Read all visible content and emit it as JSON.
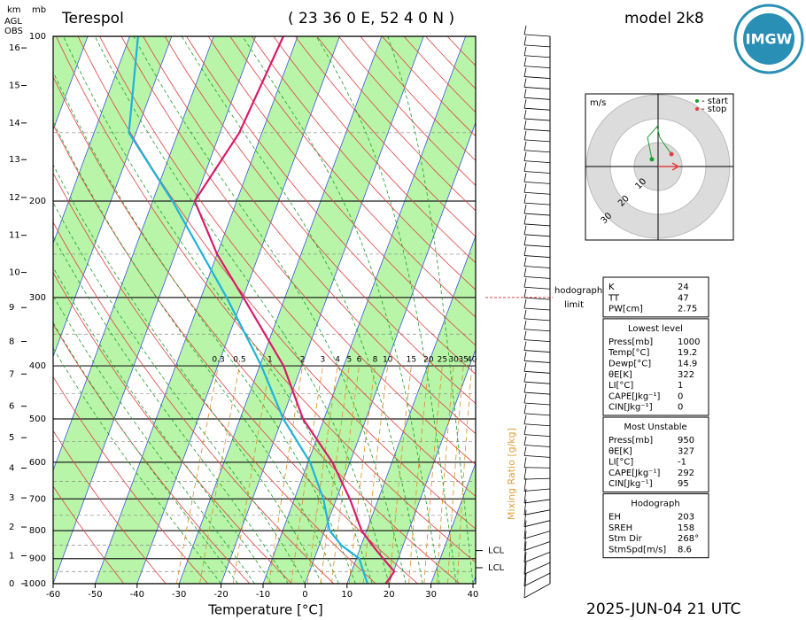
{
  "header": {
    "station": "Terespol",
    "coords": "( 23 36  0 E, 52  4  0 N )",
    "model": "model 2k8",
    "logo": "IMGW",
    "datetime": "2025-JUN-04   21 UTC"
  },
  "chart_data": {
    "type": "skewt",
    "xlabel": "Temperature [°C]",
    "xlim": [
      -60,
      40
    ],
    "xticks": [
      -60,
      -50,
      -40,
      -30,
      -20,
      -10,
      0,
      10,
      20,
      30,
      40
    ],
    "ylim": [
      100,
      1000
    ],
    "yticks": [
      100,
      200,
      300,
      400,
      500,
      600,
      700,
      800,
      900,
      1000
    ],
    "km_title": "km",
    "mb_title": "mb",
    "agl": "AGL",
    "obs": "OBS",
    "km_ticks": [
      0,
      1,
      2,
      3,
      4,
      5,
      6,
      7,
      8,
      9,
      10,
      11,
      12,
      13,
      14,
      15,
      16
    ],
    "mixing_ratio_label": "Mixing Ratio [g/kg]",
    "mixing_ratios": [
      0.3,
      0.5,
      1,
      2,
      3,
      4,
      5,
      6,
      8,
      10,
      15,
      20,
      25,
      30,
      35,
      40
    ],
    "series": [
      {
        "color": "#d81b6a",
        "pressure": [
          1000,
          950,
          900,
          850,
          800,
          700,
          600,
          500,
          400,
          300,
          250,
          200,
          150,
          100
        ],
        "values": [
          19.2,
          20.2,
          16.4,
          12.6,
          8.8,
          3.2,
          -4.2,
          -15,
          -24.3,
          -39.9,
          -50,
          -60,
          -55.4,
          -53.4
        ]
      },
      {
        "color": "#1fb3dc",
        "pressure": [
          1000,
          950,
          900,
          850,
          800,
          700,
          600,
          500,
          400,
          300,
          200,
          150,
          100
        ],
        "values": [
          14.9,
          12.8,
          10.7,
          5.2,
          1.2,
          -3.1,
          -9.5,
          -19.7,
          -29.6,
          -43.9,
          -65.3,
          -81.7,
          -88
        ]
      }
    ],
    "lcl": [
      {
        "label": "LCL",
        "pressure": 870
      },
      {
        "label": "LCL",
        "pressure": 935
      }
    ],
    "hodograph_limit": [
      "hodograph",
      "limit"
    ]
  },
  "hodograph": {
    "unit": "m/s",
    "start": "- start",
    "stop": "- stop",
    "rings": [
      10,
      20,
      30
    ],
    "u": [
      -2.6,
      -4.4,
      -0.4,
      0.7,
      2.6,
      5.6
    ],
    "v": [
      3.0,
      12.2,
      16.7,
      12.2,
      9.3,
      5.2
    ]
  },
  "stats": [
    {
      "rows": [
        [
          "K",
          24
        ],
        [
          "TT",
          47
        ],
        [
          "PW[cm]",
          2.75
        ]
      ]
    },
    {
      "title": "Lowest level",
      "rows": [
        [
          "Press[mb]",
          1000
        ],
        [
          "Temp[°C]",
          19.2
        ],
        [
          "Dewp[°C]",
          14.9
        ],
        [
          "θE[K]",
          322
        ],
        [
          "LI[°C]",
          1
        ],
        [
          "CAPE[Jkg⁻¹]",
          0
        ],
        [
          "CIN[Jkg⁻¹]",
          0
        ]
      ]
    },
    {
      "title": "Most Unstable",
      "rows": [
        [
          "Press[mb]",
          950
        ],
        [
          "θE[K]",
          327
        ],
        [
          "LI[°C]",
          -1
        ],
        [
          "CAPE[Jkg⁻¹]",
          292
        ],
        [
          "CIN[Jkg⁻¹]",
          95
        ]
      ]
    },
    {
      "title": "Hodograph",
      "rows": [
        [
          "EH",
          203
        ],
        [
          "SREH",
          158
        ],
        [
          "Stm Dir",
          "268°"
        ],
        [
          "StmSpd[m/s]",
          8.6
        ]
      ]
    }
  ]
}
